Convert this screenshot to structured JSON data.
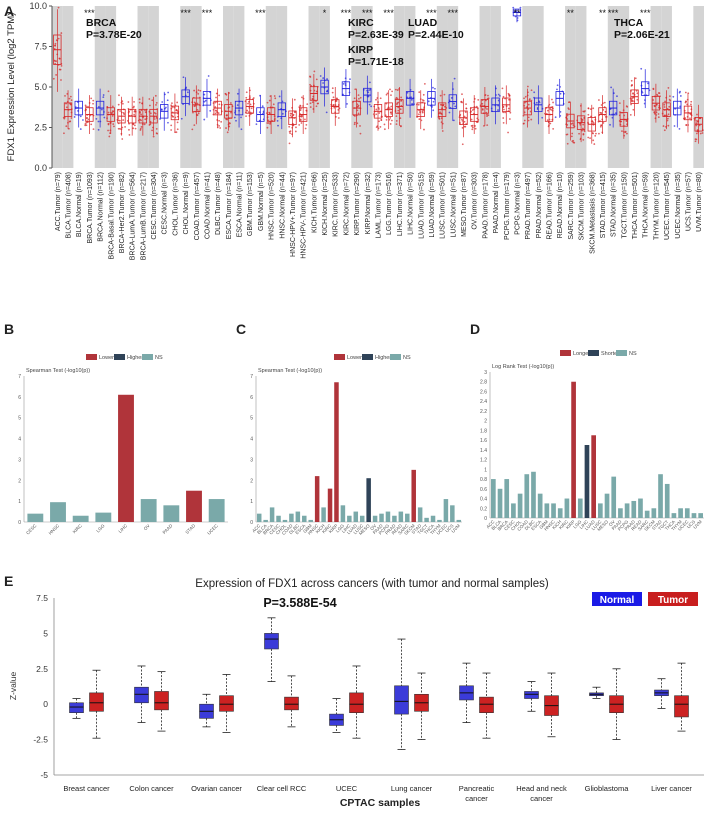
{
  "panel_letters": {
    "a": "A",
    "b": "B",
    "c": "C",
    "d": "D",
    "e": "E"
  },
  "colors": {
    "tumor": "#d62728",
    "normal": "#2222dd",
    "lower": "#b0343a",
    "higher": "#2f4358",
    "ns": "#7aa9a9",
    "longer": "#b0343a",
    "shorter": "#2f4358",
    "boxTumor": "#cc2222",
    "boxNormal": "#3b3bd9"
  },
  "chart_data": [
    {
      "id": "A",
      "type": "boxplot",
      "ylabel": "FDX1 Expression Level (log2 TPM)",
      "ylim": [
        0,
        10
      ],
      "yticks": [
        "0.0",
        "2.5",
        "5.0",
        "7.5",
        "10.0"
      ],
      "categories": [
        "ACC.Tumor (n=79)",
        "BLCA.Tumor (n=408)",
        "BLCA.Normal (n=19)",
        "BRCA.Tumor (n=1093)",
        "BRCA.Normal (n=112)",
        "BRCA-Basal.Tumor (n=190)",
        "BRCA-Her2.Tumor (n=82)",
        "BRCA-LumA.Tumor (n=564)",
        "BRCA-LumB.Tumor (n=217)",
        "CESC.Tumor (n=304)",
        "CESC.Normal (n=3)",
        "CHOL.Tumor (n=36)",
        "CHOL.Normal (n=9)",
        "COAD.Tumor (n=457)",
        "COAD.Normal (n=41)",
        "DLBC.Tumor (n=48)",
        "ESCA.Tumor (n=184)",
        "ESCA.Normal (n=11)",
        "GBM.Tumor (n=153)",
        "GBM.Normal (n=5)",
        "HNSC.Tumor (n=520)",
        "HNSC.Normal (n=44)",
        "HNSC-HPV+.Tumor (n=97)",
        "HNSC-HPV-.Tumor (n=421)",
        "KICH.Tumor (n=66)",
        "KICH.Normal (n=25)",
        "KIRC.Tumor (n=533)",
        "KIRC.Normal (n=72)",
        "KIRP.Tumor (n=290)",
        "KIRP.Normal (n=32)",
        "LAML.Tumor (n=173)",
        "LGG.Tumor (n=516)",
        "LIHC.Tumor (n=371)",
        "LIHC.Normal (n=50)",
        "LUAD.Tumor (n=515)",
        "LUAD.Normal (n=59)",
        "LUSC.Tumor (n=501)",
        "LUSC.Normal (n=51)",
        "MESO.Tumor (n=87)",
        "OV.Tumor (n=303)",
        "PAAD.Tumor (n=178)",
        "PAAD.Normal (n=4)",
        "PCPG.Tumor (n=179)",
        "PCPG.Normal (n=3)",
        "PRAD.Tumor (n=497)",
        "PRAD.Normal (n=52)",
        "READ.Tumor (n=166)",
        "READ.Normal (n=10)",
        "SARC.Tumor (n=259)",
        "SKCM.Tumor (n=103)",
        "SKCM.Metastasis (n=368)",
        "STAD.Tumor (n=415)",
        "STAD.Normal (n=35)",
        "TGCT.Tumor (n=150)",
        "THCA.Tumor (n=501)",
        "THCA.Normal (n=59)",
        "THYM.Tumor (n=120)",
        "UCEC.Tumor (n=545)",
        "UCEC.Normal (n=35)",
        "UCS.Tumor (n=57)",
        "UVM.Tumor (n=80)"
      ],
      "medians": [
        7.3,
        3.6,
        3.7,
        3.3,
        3.7,
        3.3,
        3.2,
        3.2,
        3.2,
        3.2,
        3.5,
        3.4,
        4.4,
        3.9,
        4.3,
        3.7,
        3.5,
        3.7,
        3.8,
        3.3,
        3.3,
        3.6,
        3.1,
        3.3,
        4.6,
        5.0,
        3.8,
        4.9,
        3.7,
        4.5,
        3.5,
        3.6,
        3.8,
        4.3,
        3.6,
        4.3,
        3.6,
        4.1,
        3.1,
        3.3,
        3.8,
        3.9,
        3.9,
        9.6,
        3.7,
        3.9,
        3.3,
        4.3,
        2.9,
        2.8,
        2.7,
        3.3,
        3.7,
        3.0,
        4.4,
        4.9,
        4.0,
        3.6,
        3.7,
        3.4,
        2.7
      ],
      "annotations": [
        {
          "text": "BRCA",
          "sub": "P=3.78E-20"
        },
        {
          "text": "KIRC",
          "sub": "P=2.63E-39"
        },
        {
          "text": "KIRP",
          "sub": "P=1.71E-18"
        },
        {
          "text": "LUAD",
          "sub": "P=2.44E-10"
        },
        {
          "text": "THCA",
          "sub": "P=2.06E-21"
        }
      ],
      "significance": [
        {
          "cat": 3,
          "stars": "***"
        },
        {
          "cat": 12,
          "stars": "***"
        },
        {
          "cat": 14,
          "stars": "***"
        },
        {
          "cat": 19,
          "stars": "***"
        },
        {
          "cat": 25,
          "stars": "*"
        },
        {
          "cat": 27,
          "stars": "***"
        },
        {
          "cat": 29,
          "stars": "***"
        },
        {
          "cat": 31,
          "stars": "***"
        },
        {
          "cat": 35,
          "stars": "***"
        },
        {
          "cat": 37,
          "stars": "***"
        },
        {
          "cat": 43,
          "stars": "**"
        },
        {
          "cat": 48,
          "stars": "**"
        },
        {
          "cat": 51,
          "stars": "**"
        },
        {
          "cat": 52,
          "stars": "***"
        },
        {
          "cat": 55,
          "stars": "***"
        }
      ]
    },
    {
      "id": "B",
      "type": "bar",
      "title": "Spearman Test (-log10(p))",
      "legend": [
        "Lower",
        "Higher",
        "NS"
      ],
      "ylim": [
        0,
        7
      ],
      "yticks": [
        "0",
        "1",
        "2",
        "3",
        "4",
        "5",
        "6",
        "7"
      ],
      "categories": [
        "CESC",
        "HNSC",
        "KIRC",
        "LGG",
        "LIHC",
        "OV",
        "PAAD",
        "STAD",
        "UCEC"
      ],
      "values": [
        0.4,
        0.95,
        0.3,
        0.45,
        6.1,
        1.1,
        0.8,
        1.5,
        1.1
      ],
      "status": [
        "NS",
        "NS",
        "NS",
        "NS",
        "Lower",
        "NS",
        "NS",
        "Lower",
        "NS"
      ]
    },
    {
      "id": "C",
      "type": "bar",
      "title": "Spearman Test (-log10(p))",
      "legend": [
        "Lower",
        "Higher",
        "NS"
      ],
      "ylim": [
        0,
        7
      ],
      "yticks": [
        "0",
        "1",
        "2",
        "3",
        "4",
        "5",
        "6",
        "7"
      ],
      "categories": [
        "ACC",
        "BLCA",
        "BRCA",
        "CESC",
        "CHOL",
        "COAD",
        "DLBC",
        "ESCA",
        "GBM",
        "HNSC",
        "KICH",
        "KIRC",
        "KIRP",
        "LGG",
        "LIHC",
        "LUAD",
        "LUSC",
        "MESO",
        "OV",
        "PAAD",
        "PCPG",
        "PRAD",
        "READ",
        "SARC",
        "SKCM",
        "STAD",
        "TGCT",
        "THCA",
        "THYM",
        "UCEC",
        "UCS",
        "UVM"
      ],
      "values": [
        0.4,
        0.1,
        0.7,
        0.3,
        0.1,
        0.4,
        0.5,
        0.3,
        0.1,
        2.2,
        0.7,
        1.6,
        6.7,
        0.8,
        0.3,
        0.5,
        0.3,
        2.1,
        0.3,
        0.4,
        0.5,
        0.3,
        0.5,
        0.4,
        2.5,
        0.7,
        0.2,
        0.3,
        0.1,
        1.1,
        0.8,
        0.1
      ],
      "status": [
        "NS",
        "NS",
        "NS",
        "NS",
        "NS",
        "NS",
        "NS",
        "NS",
        "NS",
        "Lower",
        "NS",
        "Lower",
        "Lower",
        "NS",
        "NS",
        "NS",
        "NS",
        "Higher",
        "NS",
        "NS",
        "NS",
        "NS",
        "NS",
        "NS",
        "Lower",
        "NS",
        "NS",
        "NS",
        "NS",
        "NS",
        "NS",
        "NS"
      ]
    },
    {
      "id": "D",
      "type": "bar",
      "title": "Log Rank Test (-log10(p))",
      "legend": [
        "Longer",
        "Shorter",
        "NS"
      ],
      "ylim": [
        0,
        3
      ],
      "yticks": [
        "0",
        "0.2",
        "0.4",
        "0.6",
        "0.8",
        "1",
        "1.2",
        "1.4",
        "1.6",
        "1.8",
        "2",
        "2.2",
        "2.4",
        "2.6",
        "2.8",
        "3"
      ],
      "categories": [
        "ACC",
        "BLCA",
        "BRCA",
        "CESC",
        "CHOL",
        "COAD",
        "DLBC",
        "ESCA",
        "GBM",
        "HNSC",
        "KICH",
        "KIRC",
        "KIRP",
        "LGG",
        "LIHC",
        "LUAD",
        "LUSC",
        "MESO",
        "OV",
        "PAAD",
        "PCPG",
        "PRAD",
        "READ",
        "SARC",
        "SKCM",
        "STAD",
        "TGCT",
        "THCA",
        "THYM",
        "UCEC",
        "UCS",
        "UVM"
      ],
      "values": [
        0.8,
        0.6,
        0.8,
        0.3,
        0.5,
        0.9,
        0.95,
        0.5,
        0.3,
        0.3,
        0.2,
        0.4,
        2.8,
        0.4,
        1.5,
        1.7,
        0.3,
        0.5,
        0.85,
        0.2,
        0.3,
        0.35,
        0.4,
        0.15,
        0.2,
        0.9,
        0.7,
        0.1,
        0.2,
        0.2,
        0.1,
        0.1
      ],
      "status": [
        "NS",
        "NS",
        "NS",
        "NS",
        "NS",
        "NS",
        "NS",
        "NS",
        "NS",
        "NS",
        "NS",
        "NS",
        "Longer",
        "NS",
        "Shorter",
        "Longer",
        "NS",
        "NS",
        "NS",
        "NS",
        "NS",
        "NS",
        "NS",
        "NS",
        "NS",
        "NS",
        "NS",
        "NS",
        "NS",
        "NS",
        "NS",
        "NS"
      ]
    },
    {
      "id": "E",
      "type": "boxplot",
      "title": "Expression of FDX1 across cancers (with tumor and normal samples)",
      "pvalue": "P=3.588E-54",
      "xlabel": "CPTAC samples",
      "ylabel": "Z-value",
      "ylim": [
        -5,
        7.5
      ],
      "yticks": [
        "-5",
        "-2.5",
        "0",
        "2.5",
        "5",
        "7.5"
      ],
      "legend": [
        "Normal",
        "Tumor"
      ],
      "categories": [
        "Breast cancer",
        "Colon cancer",
        "Ovarian cancer",
        "Clear cell RCC",
        "UCEC",
        "Lung cancer",
        "Pancreatic cancer",
        "Head and neck cancer",
        "Glioblastoma",
        "Liver cancer"
      ],
      "series": [
        {
          "name": "Normal",
          "values": [
            [
              -1.0,
              -0.6,
              -0.2,
              0.1,
              0.4
            ],
            [
              -1.3,
              0.1,
              0.7,
              1.2,
              2.7
            ],
            [
              -1.6,
              -1.0,
              -0.5,
              0.0,
              0.7
            ],
            [
              1.6,
              3.9,
              4.6,
              5.0,
              6.1
            ],
            [
              -2.0,
              -1.5,
              -1.1,
              -0.7,
              0.4
            ],
            [
              -3.2,
              -0.7,
              0.2,
              1.3,
              4.6
            ],
            [
              -1.3,
              0.3,
              0.8,
              1.3,
              2.9
            ],
            [
              -0.5,
              0.4,
              0.7,
              0.9,
              1.6
            ],
            [
              0.4,
              0.6,
              0.7,
              0.8,
              1.2
            ],
            [
              -0.3,
              0.6,
              0.8,
              1.0,
              1.8
            ]
          ]
        },
        {
          "name": "Tumor",
          "values": [
            [
              -2.4,
              -0.5,
              0.1,
              0.8,
              2.4
            ],
            [
              -1.9,
              -0.4,
              0.1,
              0.9,
              2.3
            ],
            [
              -2.0,
              -0.5,
              0.0,
              0.6,
              2.1
            ],
            [
              -1.6,
              -0.4,
              0.0,
              0.5,
              2.0
            ],
            [
              -2.4,
              -0.6,
              0.0,
              0.8,
              2.7
            ],
            [
              -2.5,
              -0.5,
              0.1,
              0.7,
              2.2
            ],
            [
              -2.4,
              -0.6,
              0.0,
              0.5,
              2.2
            ],
            [
              -2.3,
              -0.8,
              -0.1,
              0.6,
              2.2
            ],
            [
              -2.5,
              -0.6,
              0.0,
              0.6,
              2.5
            ],
            [
              -1.9,
              -0.9,
              0.0,
              0.6,
              2.9
            ]
          ]
        }
      ]
    }
  ]
}
